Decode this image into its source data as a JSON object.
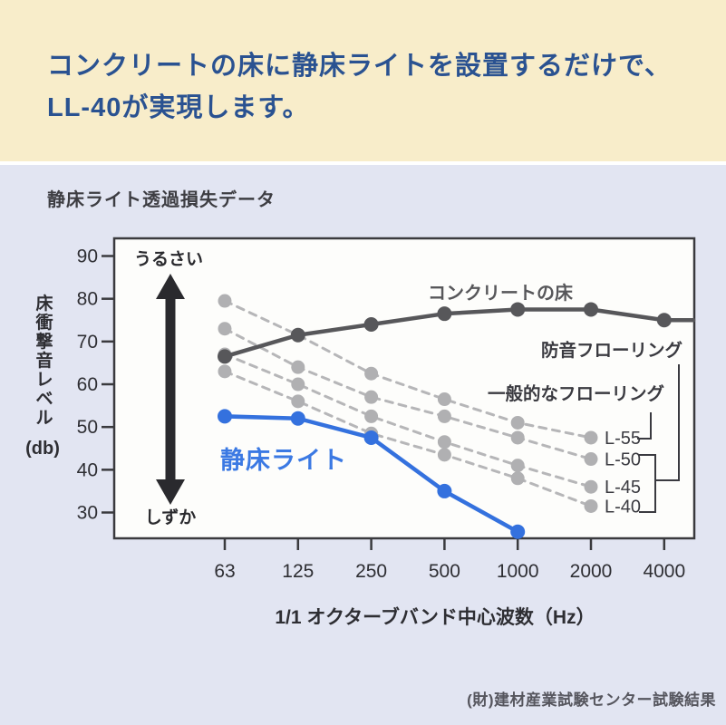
{
  "colors": {
    "header_bg": "#f8edca",
    "header_text": "#2a5291",
    "section_bg": "#e2e5f2",
    "title_text": "#3d3d42",
    "plot_bg": "#fdfdfb",
    "plot_border": "#3a3a3e",
    "tick_text": "#2e2e33",
    "concrete_line": "#57575a",
    "dashed_line": "#b6b6b8",
    "dashed_dot": "#b0b0b2",
    "blue_line": "#3471de",
    "blue_label": "#3b79e3",
    "arrow": "#2a2a2e",
    "annotation_text": "#3a3a40",
    "footer_text": "#56565e"
  },
  "header": {
    "line1": "コンクリートの床に静床ライトを設置するだけで、",
    "line2": "LL-40が実現します。"
  },
  "section": {
    "title": "静床ライト透過損失データ",
    "source_note": "(財)建材産業試験センター試験結果"
  },
  "chart_data": {
    "type": "line",
    "title": "静床ライト透過損失データ",
    "xlabel": "1/1 オクターブバンド中心波数（Hz）",
    "ylabel": "床衝撃音レベル",
    "ylabel_unit": "(db)",
    "x_scale": "log-octave",
    "categories": [
      "63",
      "125",
      "250",
      "500",
      "1000",
      "2000",
      "4000"
    ],
    "y_ticks": [
      90,
      80,
      70,
      60,
      50,
      40,
      30
    ],
    "ylim": [
      24,
      94
    ],
    "grid": false,
    "annotations": {
      "noisy": "うるさい",
      "quiet": "しずか",
      "soundproof_flooring": "防音フローリング",
      "general_flooring": "一般的なフローリング"
    },
    "series": [
      {
        "key": "l55",
        "name": "L-55",
        "group": "general_flooring",
        "style": "dashed",
        "x": [
          63,
          125,
          250,
          500,
          1000,
          2000
        ],
        "values": [
          79.5,
          71.5,
          62.5,
          56.5,
          51,
          47.5
        ],
        "label": "L-55"
      },
      {
        "key": "l50",
        "name": "L-50",
        "group": "soundproof_flooring",
        "style": "dashed",
        "x": [
          63,
          125,
          250,
          500,
          1000,
          2000
        ],
        "values": [
          73,
          64,
          57,
          52.5,
          47.5,
          42.5
        ],
        "label": "L-50"
      },
      {
        "key": "l45",
        "name": "L-45",
        "group": "soundproof_flooring",
        "style": "dashed",
        "x": [
          63,
          125,
          250,
          500,
          1000,
          2000
        ],
        "values": [
          67,
          60,
          52.5,
          46.5,
          41,
          36
        ],
        "label": "L-45"
      },
      {
        "key": "l40",
        "name": "L-40",
        "group": "soundproof_flooring",
        "style": "dashed",
        "x": [
          63,
          125,
          250,
          500,
          1000,
          2000
        ],
        "values": [
          63,
          56,
          48.5,
          43.5,
          38,
          31.5
        ],
        "label": "L-40"
      },
      {
        "key": "concrete",
        "name": "コンクリートの床",
        "style": "solid",
        "x": [
          63,
          125,
          250,
          500,
          1000,
          2000,
          4000
        ],
        "values": [
          66.5,
          71.5,
          74,
          76.5,
          77.5,
          77.5,
          75
        ],
        "extend_right": true
      },
      {
        "key": "shizuka-light",
        "name": "静床ライト",
        "style": "solid",
        "x": [
          63,
          125,
          250,
          500,
          1000
        ],
        "values": [
          52.5,
          52,
          47.5,
          35,
          25.5
        ]
      }
    ],
    "legend_position": "inline-labels",
    "source_note": "(財)建材産業試験センター試験結果"
  }
}
